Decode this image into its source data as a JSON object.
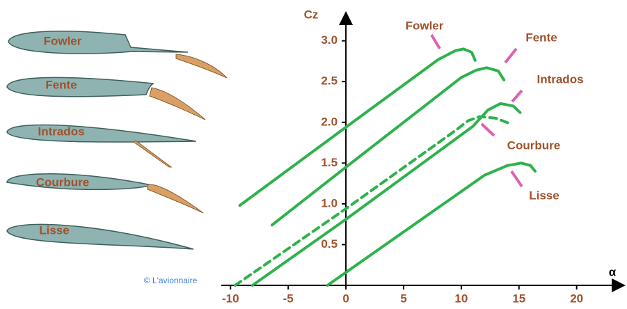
{
  "chart_data": {
    "type": "line",
    "xlabel": "α",
    "ylabel": "Cz",
    "credit": "© L'avionnaire",
    "xlim": [
      -10.8,
      24
    ],
    "ylim": [
      0,
      3.33
    ],
    "xticks": [
      -10,
      -5,
      0,
      5,
      10,
      15,
      20
    ],
    "yticks": [
      0.5,
      {
        "value": 1,
        "label": "1.0"
      },
      1.5,
      {
        "value": 2,
        "label": "2.0"
      },
      2.5,
      {
        "value": 3,
        "label": "3.0"
      }
    ],
    "series": [
      {
        "name": "Fowler",
        "color": "#2eb24c",
        "style": "solid",
        "x": [
          -9.2,
          0,
          8,
          9.5,
          10.2,
          10.9,
          11.2
        ],
        "values": [
          0.98,
          1.94,
          2.77,
          2.88,
          2.9,
          2.86,
          2.76
        ]
      },
      {
        "name": "Fente",
        "color": "#2eb24c",
        "style": "solid",
        "x": [
          -6.4,
          0,
          10,
          11.3,
          12.2,
          13.2,
          13.7
        ],
        "values": [
          0.74,
          1.45,
          2.55,
          2.64,
          2.67,
          2.63,
          2.52
        ]
      },
      {
        "name": "Intrados",
        "color": "#2eb24c",
        "style": "solid",
        "x": [
          -8.1,
          0,
          11,
          12.3,
          13.4,
          14.5,
          15.1
        ],
        "values": [
          0,
          0.81,
          1.95,
          2.15,
          2.23,
          2.2,
          2.12
        ]
      },
      {
        "name": "Courbure",
        "color": "#2eb24c",
        "style": "dashed",
        "x": [
          -9.6,
          0,
          9.5,
          10.6,
          11.6,
          13,
          14.3
        ],
        "values": [
          0,
          0.94,
          1.9,
          2.02,
          2.07,
          2.05,
          1.98
        ]
      },
      {
        "name": "Lisse",
        "color": "#2eb24c",
        "style": "solid",
        "x": [
          -1.6,
          12,
          14,
          15.2,
          16,
          16.4
        ],
        "values": [
          0,
          1.35,
          1.47,
          1.5,
          1.47,
          1.4
        ]
      }
    ]
  }
}
